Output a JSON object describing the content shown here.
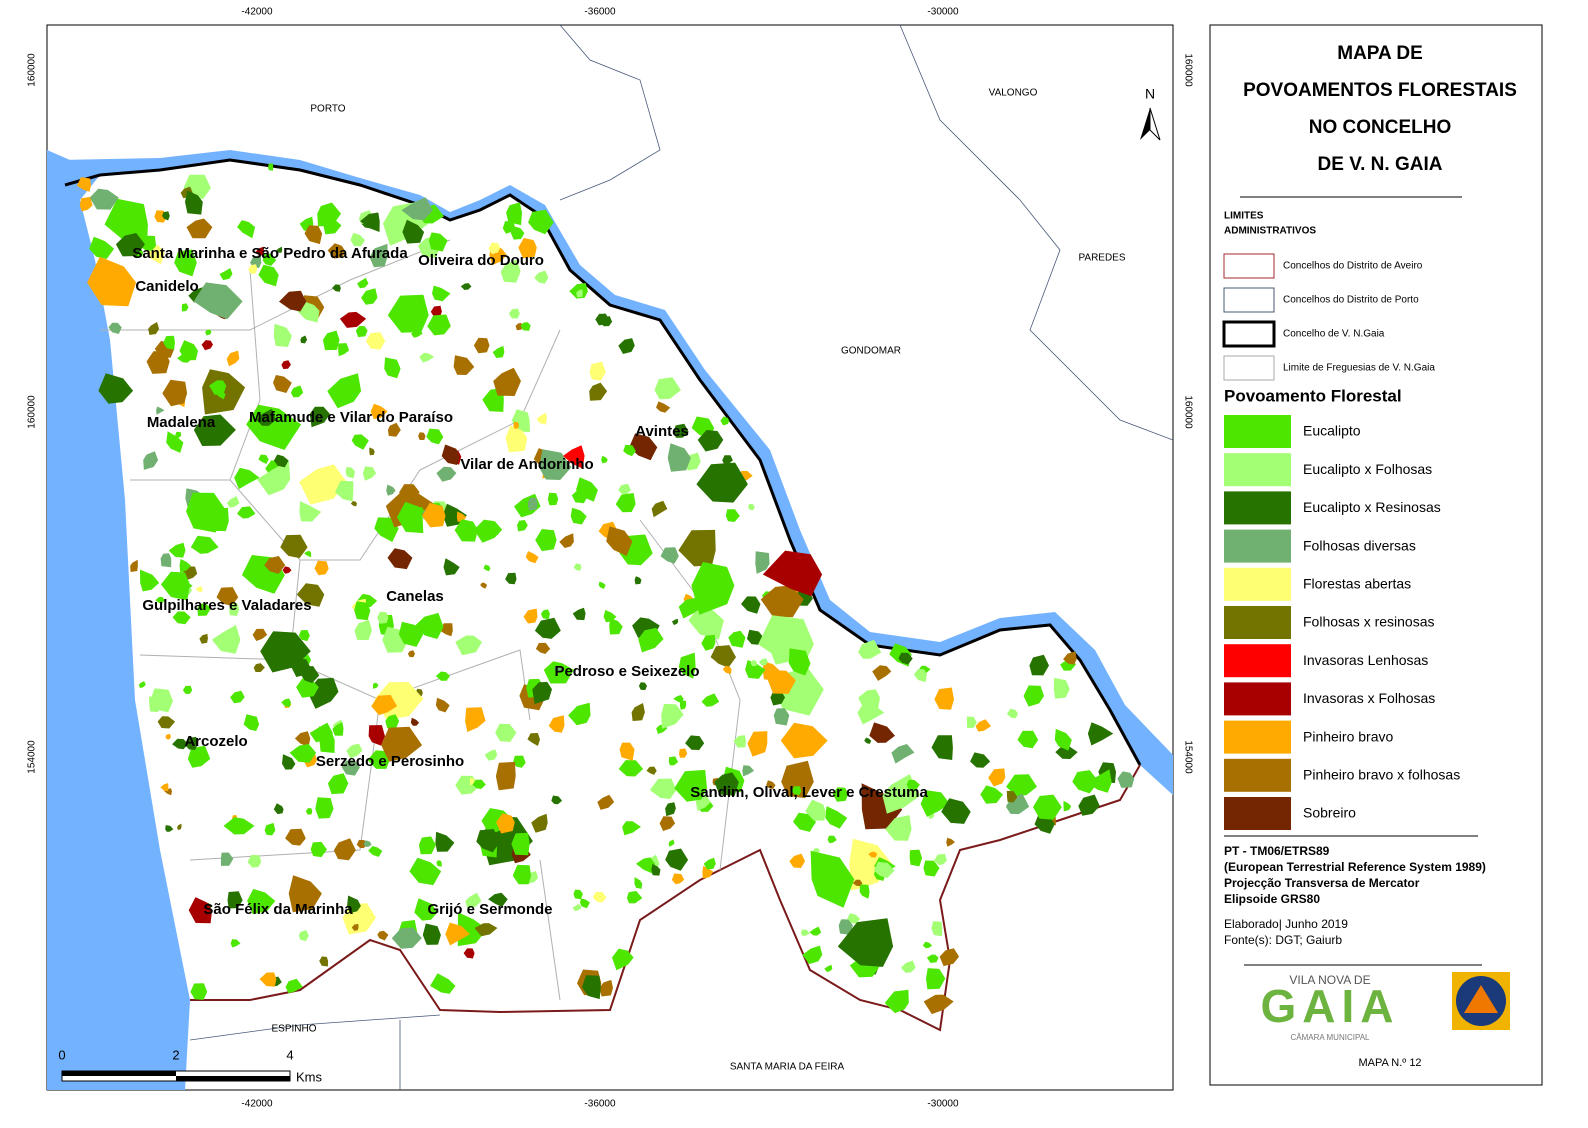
{
  "map": {
    "title": [
      "MAPA DE",
      "POVOAMENTOS FLORESTAIS",
      "NO CONCELHO",
      "DE V. N. GAIA"
    ],
    "grid_top": [
      "-42000",
      "-36000",
      "-30000"
    ],
    "grid_bottom": [
      "-42000",
      "-36000",
      "-30000"
    ],
    "grid_left": [
      "160000",
      "160000",
      "154000"
    ],
    "grid_right": [
      "160000",
      "160000",
      "154000"
    ],
    "neighbors": [
      "PORTO",
      "VALONGO",
      "PAREDES",
      "GONDOMAR",
      "ESPINHO",
      "SANTA MARIA DA FEIRA"
    ],
    "parishes": [
      "Santa Marinha e São Pedro da Afurada",
      "Oliveira do Douro",
      "Canidelo",
      "Madalena",
      "Mafamude e Vilar do Paraíso",
      "Avintes",
      "Vilar de Andorinho",
      "Gulpilhares e Valadares",
      "Canelas",
      "Pedroso e Seixezelo",
      "Arcozelo",
      "Serzedo e Perosinho",
      "Sandim, Olival, Lever e Crestuma",
      "São Félix da Marinha",
      "Grijó e Sermonde"
    ],
    "north": "N",
    "scale": {
      "labels": [
        "0",
        "2",
        "4"
      ],
      "unit": "Kms"
    },
    "legend": {
      "admin_title": [
        "LIMITES",
        "ADMINISTRATIVOS"
      ],
      "admin": [
        {
          "name": "Concelhos do Distrito de Aveiro",
          "color": "#a52a2a"
        },
        {
          "name": "Concelhos do Distrito de Porto",
          "color": "#4a5a7a"
        },
        {
          "name": "Concelho de V. N.Gaia",
          "color": "#000000"
        },
        {
          "name": "Limite de Freguesias de V. N.Gaia",
          "color": "#aaaaaa"
        }
      ],
      "forest_title": "Povoamento Florestal",
      "forest": [
        {
          "name": "Eucalipto",
          "color": "#4ce600"
        },
        {
          "name": "Eucalipto x Folhosas",
          "color": "#a3ff73"
        },
        {
          "name": "Eucalipto x Resinosas",
          "color": "#267300"
        },
        {
          "name": "Folhosas diversas",
          "color": "#70b070"
        },
        {
          "name": "Florestas abertas",
          "color": "#ffff73"
        },
        {
          "name": "Folhosas x resinosas",
          "color": "#737300"
        },
        {
          "name": "Invasoras Lenhosas",
          "color": "#ff0000"
        },
        {
          "name": "Invasoras x Folhosas",
          "color": "#a80000"
        },
        {
          "name": "Pinheiro bravo",
          "color": "#ffaa00"
        },
        {
          "name": "Pinheiro bravo x folhosas",
          "color": "#a87000"
        },
        {
          "name": "Sobreiro",
          "color": "#732600"
        }
      ]
    },
    "projection": [
      "PT - TM06/ETRS89",
      "(European Terrestrial Reference System 1989)",
      "Projecção Transversa de Mercator",
      "Elipsoide GRS80"
    ],
    "credits": [
      "Elaborado| Junho 2019",
      "Fonte(s): DGT; Gaiurb"
    ],
    "logo": {
      "top": "VILA NOVA DE",
      "word": "GAIA",
      "bottom": "CÂMARA MUNICIPAL"
    },
    "map_number": "MAPA N.º 12"
  }
}
